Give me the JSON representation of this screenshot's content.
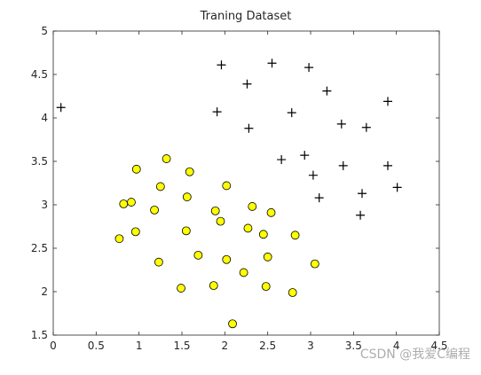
{
  "chart_data": {
    "type": "scatter",
    "title": "Traning Dataset",
    "xlim": [
      0,
      4.5
    ],
    "ylim": [
      1.5,
      5
    ],
    "xticks": [
      0,
      0.5,
      1,
      1.5,
      2,
      2.5,
      3,
      3.5,
      4,
      4.5
    ],
    "yticks": [
      1.5,
      2,
      2.5,
      3,
      3.5,
      4,
      4.5,
      5
    ],
    "series": [
      {
        "marker": "plus",
        "color": "#000000",
        "x": [
          0.09,
          1.96,
          2.55,
          2.98,
          2.26,
          3.19,
          1.91,
          2.78,
          3.9,
          2.28,
          3.36,
          3.65,
          2.66,
          2.93,
          3.38,
          3.9,
          3.03,
          4.01,
          3.1,
          3.6,
          3.58
        ],
        "y": [
          4.12,
          4.61,
          4.63,
          4.58,
          4.39,
          4.31,
          4.07,
          4.06,
          4.19,
          3.88,
          3.93,
          3.89,
          3.52,
          3.57,
          3.45,
          3.45,
          3.34,
          3.2,
          3.08,
          3.13,
          2.88
        ]
      },
      {
        "marker": "circle",
        "color": "#ffff00",
        "x": [
          1.32,
          0.97,
          1.59,
          1.25,
          2.02,
          0.82,
          0.91,
          1.56,
          1.18,
          1.89,
          2.32,
          2.54,
          1.95,
          0.96,
          0.77,
          1.55,
          2.27,
          2.45,
          2.82,
          1.69,
          2.02,
          2.5,
          1.23,
          3.05,
          2.22,
          1.87,
          1.49,
          2.48,
          2.79,
          2.09
        ],
        "y": [
          3.53,
          3.41,
          3.38,
          3.21,
          3.22,
          3.01,
          3.03,
          3.09,
          2.94,
          2.93,
          2.98,
          2.91,
          2.81,
          2.69,
          2.61,
          2.7,
          2.73,
          2.66,
          2.65,
          2.42,
          2.37,
          2.4,
          2.34,
          2.32,
          2.22,
          2.07,
          2.04,
          2.06,
          1.99,
          1.63
        ]
      }
    ]
  },
  "watermark": "CSDN @我爱C编程"
}
